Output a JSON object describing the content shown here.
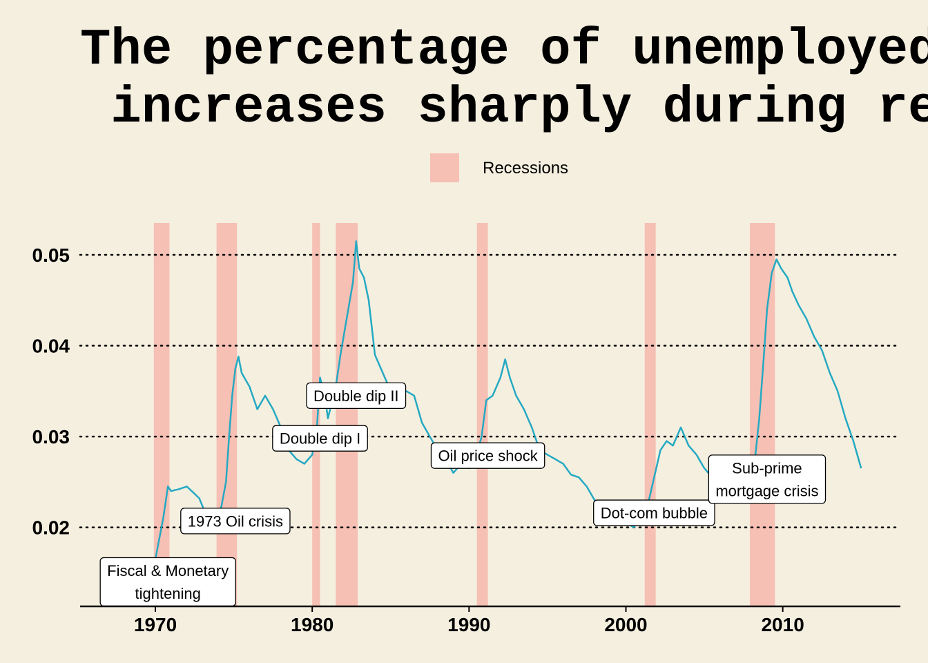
{
  "chart_data": {
    "type": "line",
    "title_lines": [
      "The percentage of unemployed people",
      " increases sharply during recessions"
    ],
    "legend": {
      "label": "Recessions",
      "placement": "top-center"
    },
    "xlabel": "",
    "ylabel": "",
    "xlim": [
      1965.2,
      2017.5
    ],
    "ylim": [
      0.0113,
      0.0535
    ],
    "x_ticks": [
      1970,
      1980,
      1990,
      2000,
      2010
    ],
    "y_ticks": [
      0.02,
      0.03,
      0.04,
      0.05
    ],
    "x_tick_labels": [
      "1970",
      "1980",
      "1990",
      "2000",
      "2010"
    ],
    "y_tick_labels": [
      "0.02",
      "0.03",
      "0.04",
      "0.05"
    ],
    "grid": "y-dotted",
    "colors": {
      "background": "#f5efe0",
      "line": "#25a9c2",
      "recession": "#f6c0b4"
    },
    "recessions": [
      [
        1969.9,
        1970.9
      ],
      [
        1973.9,
        1975.2
      ],
      [
        1980.0,
        1980.5
      ],
      [
        1981.5,
        1982.9
      ],
      [
        1990.5,
        1991.2
      ],
      [
        2001.2,
        2001.9
      ],
      [
        2007.9,
        2009.5
      ]
    ],
    "series": [
      {
        "x": [
          1970.0,
          1970.5,
          1970.8,
          1971.0,
          1971.5,
          1972.0,
          1972.5,
          1972.8,
          1973.2,
          1973.7,
          1974.0,
          1974.2,
          1974.5,
          1974.7,
          1974.9,
          1975.1,
          1975.3,
          1975.5,
          1976.0,
          1976.5,
          1977.0,
          1977.5,
          1978.0,
          1978.5,
          1979.0,
          1979.5,
          1980.0,
          1980.3,
          1980.5,
          1980.8,
          1981.0,
          1981.5,
          1981.8,
          1982.0,
          1982.3,
          1982.6,
          1982.8,
          1983.0,
          1983.3,
          1983.6,
          1984.0,
          1984.5,
          1985.0,
          1985.5,
          1986.0,
          1986.5,
          1987.0,
          1987.5,
          1988.0,
          1988.5,
          1989.0,
          1989.5,
          1990.0,
          1990.4,
          1990.8,
          1991.1,
          1991.5,
          1992.0,
          1992.3,
          1992.6,
          1993.0,
          1993.5,
          1994.0,
          1994.5,
          1995.0,
          1995.5,
          1996.0,
          1996.5,
          1997.0,
          1997.5,
          1998.0,
          1998.5,
          1999.0,
          1999.5,
          2000.0,
          2000.5,
          2001.0,
          2001.4,
          2001.8,
          2002.2,
          2002.6,
          2003.0,
          2003.5,
          2004.0,
          2004.5,
          2005.0,
          2005.5,
          2006.0,
          2006.5,
          2007.0,
          2007.5,
          2007.9,
          2008.2,
          2008.5,
          2008.8,
          2009.0,
          2009.3,
          2009.6,
          2009.9,
          2010.3,
          2010.6,
          2011.0,
          2011.5,
          2012.0,
          2012.5,
          2013.0,
          2013.5,
          2014.0,
          2014.5,
          2015.0
        ],
        "values": [
          0.0165,
          0.021,
          0.0245,
          0.024,
          0.0242,
          0.0245,
          0.0237,
          0.0232,
          0.0215,
          0.022,
          0.0218,
          0.0222,
          0.025,
          0.03,
          0.0345,
          0.0375,
          0.0388,
          0.037,
          0.0355,
          0.033,
          0.0345,
          0.033,
          0.031,
          0.0285,
          0.0275,
          0.027,
          0.028,
          0.031,
          0.0365,
          0.0345,
          0.032,
          0.0355,
          0.039,
          0.041,
          0.044,
          0.047,
          0.0515,
          0.0485,
          0.0475,
          0.045,
          0.039,
          0.037,
          0.035,
          0.0345,
          0.035,
          0.0345,
          0.0315,
          0.03,
          0.0285,
          0.0275,
          0.026,
          0.027,
          0.0265,
          0.0275,
          0.03,
          0.034,
          0.0345,
          0.0365,
          0.0385,
          0.0365,
          0.0345,
          0.033,
          0.031,
          0.0285,
          0.028,
          0.0275,
          0.027,
          0.0258,
          0.0255,
          0.0245,
          0.023,
          0.0225,
          0.0215,
          0.0212,
          0.0205,
          0.02,
          0.021,
          0.0225,
          0.0255,
          0.0285,
          0.0295,
          0.029,
          0.031,
          0.029,
          0.028,
          0.0265,
          0.0255,
          0.0245,
          0.0235,
          0.0228,
          0.023,
          0.024,
          0.027,
          0.032,
          0.039,
          0.044,
          0.048,
          0.0495,
          0.0485,
          0.0475,
          0.046,
          0.0445,
          0.043,
          0.041,
          0.0395,
          0.037,
          0.035,
          0.032,
          0.0295,
          0.0265
        ]
      }
    ],
    "annotations": [
      {
        "lines": [
          "Fiscal & Monetary",
          "tightening"
        ],
        "x": 1970.8,
        "y": 0.014
      },
      {
        "lines": [
          "1973 Oil crisis"
        ],
        "x": 1975.1,
        "y": 0.0207
      },
      {
        "lines": [
          "Double dip I"
        ],
        "x": 1980.5,
        "y": 0.0298
      },
      {
        "lines": [
          "Double dip II"
        ],
        "x": 1982.8,
        "y": 0.0345
      },
      {
        "lines": [
          "Oil price shock"
        ],
        "x": 1991.2,
        "y": 0.0279
      },
      {
        "lines": [
          "Dot-com bubble"
        ],
        "x": 2001.8,
        "y": 0.0216
      },
      {
        "lines": [
          "Sub-prime",
          "mortgage crisis"
        ],
        "x": 2009.0,
        "y": 0.0253
      }
    ]
  }
}
